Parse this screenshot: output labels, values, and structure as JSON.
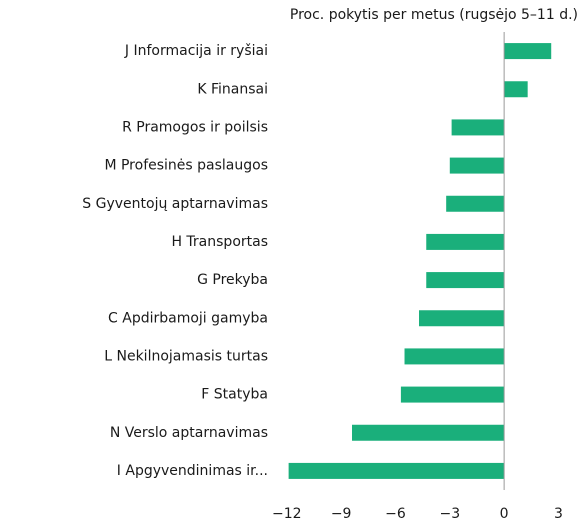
{
  "chart_data": {
    "type": "barh",
    "title": "Proc. pokytis per metus (rugsėjo 5–11 d.)",
    "categories": [
      "J Informacija ir ryšiai",
      "K Finansai",
      "R Pramogos ir poilsis",
      "M Profesinės paslaugos",
      "S Gyventojų aptarnavimas",
      "H Transportas",
      "G Prekyba",
      "C Apdirbamoji gamyba",
      "L Nekilnojamasis turtas",
      "F Statyba",
      "N Verslo aptarnavimas",
      "I Apgyvendinimas ir..."
    ],
    "values": [
      2.6,
      1.3,
      -2.9,
      -3.0,
      -3.2,
      -4.3,
      -4.3,
      -4.7,
      -5.5,
      -5.7,
      -8.4,
      -11.9
    ],
    "color": "#1aaf7b",
    "xlim": [
      -12.1,
      4.3
    ],
    "xticks": [
      {
        "value": -12,
        "label": "−12"
      },
      {
        "value": -9,
        "label": "−9"
      },
      {
        "value": -6,
        "label": "−6"
      },
      {
        "value": -3,
        "label": "−3"
      },
      0,
      3
    ]
  }
}
